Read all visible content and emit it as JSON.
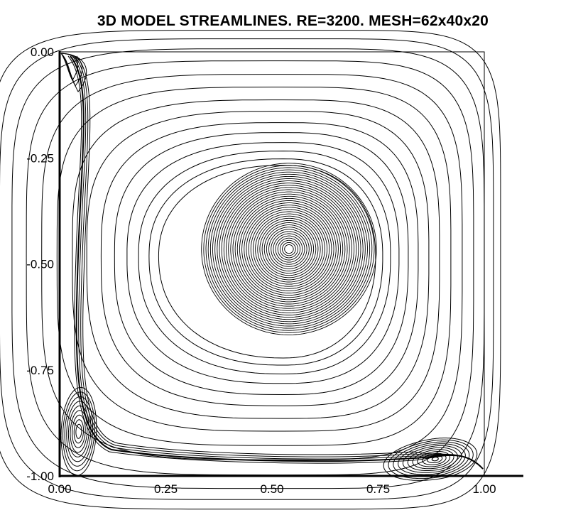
{
  "chart_data": {
    "type": "contour",
    "title": "3D MODEL STREAMLINES. RE=3200. MESH=62x40x20",
    "xlabel": "",
    "ylabel": "",
    "xlim": [
      0,
      1
    ],
    "ylim": [
      -1,
      0
    ],
    "grid": false,
    "x_tick_labels": [
      "0.00",
      "0.25",
      "0.50",
      "0.75",
      "1.00"
    ],
    "x_tick_values": [
      0,
      0.25,
      0.5,
      0.75,
      1.0
    ],
    "y_tick_labels": [
      "0.00",
      "-0.25",
      "-0.50",
      "-0.75",
      "-1.00"
    ],
    "y_tick_values": [
      0,
      -0.25,
      -0.5,
      -0.75,
      -1.0
    ],
    "line_color": "#000000",
    "vortices": [
      {
        "name": "primary",
        "center": [
          0.54,
          -0.465
        ]
      },
      {
        "name": "bottom-left",
        "center": [
          0.045,
          -0.895
        ]
      },
      {
        "name": "bottom-right",
        "center": [
          0.885,
          -0.96
        ]
      }
    ]
  }
}
